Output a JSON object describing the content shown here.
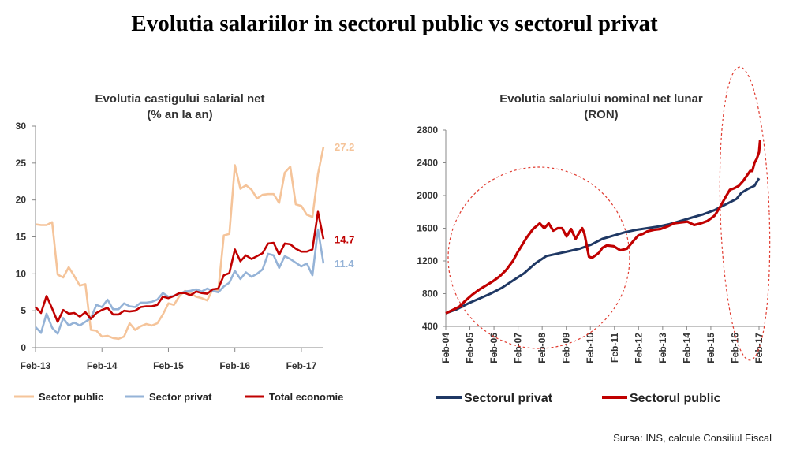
{
  "title": "Evolutia salariilor in sectorul public vs sectorul privat",
  "source": "Sursa: INS, calcule Consiliul Fiscal",
  "colors": {
    "public_left": "#F5C49A",
    "privat_left": "#95B3D7",
    "total": "#C00000",
    "privat_right": "#1F3864",
    "public_right": "#C00000",
    "highlight": "#E03C31"
  },
  "chart_data": [
    {
      "type": "line",
      "title": "Evolutia castigului salarial net",
      "subtitle": "(% an la an)",
      "ylim": [
        0,
        30
      ],
      "yticks": [
        "0",
        "5",
        "10",
        "15",
        "20",
        "25",
        "30"
      ],
      "xticks": [
        "Feb-13",
        "Feb-14",
        "Feb-15",
        "Feb-16",
        "Feb-17"
      ],
      "legend_position": "bottom",
      "series": [
        {
          "name": "Sector public",
          "color": "#F5C49A",
          "end_label": "27.2",
          "values": [
            16.7,
            16.6,
            16.6,
            17.0,
            9.9,
            9.5,
            10.9,
            9.7,
            8.4,
            8.6,
            2.4,
            2.3,
            1.5,
            1.6,
            1.3,
            1.2,
            1.5,
            3.3,
            2.4,
            2.9,
            3.2,
            3.0,
            3.3,
            4.5,
            6.0,
            5.8,
            7.0,
            7.7,
            7.4,
            6.9,
            6.7,
            6.4,
            7.9,
            7.7,
            15.2,
            15.4,
            24.7,
            21.5,
            22.0,
            21.4,
            20.2,
            20.7,
            20.8,
            20.8,
            19.6,
            23.7,
            24.5,
            19.4,
            19.2,
            18.0,
            17.7,
            23.5,
            27.2
          ]
        },
        {
          "name": "Sector privat",
          "color": "#95B3D7",
          "end_label": "11.4",
          "values": [
            2.8,
            2.0,
            4.6,
            2.7,
            1.9,
            4.0,
            3.0,
            3.4,
            3.0,
            3.5,
            4.0,
            5.8,
            5.5,
            6.5,
            5.2,
            5.2,
            6.0,
            5.6,
            5.5,
            6.1,
            6.1,
            6.2,
            6.5,
            7.4,
            6.9,
            7.0,
            7.3,
            7.6,
            7.7,
            7.9,
            7.6,
            8.0,
            7.7,
            7.5,
            8.3,
            8.8,
            10.4,
            9.3,
            10.2,
            9.6,
            10.0,
            10.6,
            12.7,
            12.5,
            10.8,
            12.4,
            12.0,
            11.5,
            11.0,
            11.4,
            9.8,
            16.0,
            11.4
          ]
        },
        {
          "name": "Total economie",
          "color": "#C00000",
          "end_label": "14.7",
          "values": [
            5.5,
            4.7,
            7.0,
            5.3,
            3.5,
            5.1,
            4.6,
            4.7,
            4.2,
            4.8,
            3.9,
            4.7,
            5.1,
            5.4,
            4.5,
            4.5,
            5.0,
            4.9,
            5.0,
            5.5,
            5.6,
            5.6,
            5.8,
            6.9,
            6.7,
            7.0,
            7.4,
            7.4,
            7.1,
            7.6,
            7.4,
            7.3,
            7.9,
            8.0,
            9.8,
            10.1,
            13.3,
            11.7,
            12.5,
            12.0,
            12.4,
            12.8,
            14.1,
            14.2,
            12.6,
            14.1,
            14.0,
            13.4,
            13.0,
            13.0,
            13.3,
            18.4,
            14.7
          ]
        }
      ]
    },
    {
      "type": "line",
      "title": "Evolutia salariului nominal net lunar",
      "subtitle": "(RON)",
      "ylim": [
        400,
        2800
      ],
      "yticks": [
        "400",
        "800",
        "1200",
        "1600",
        "2000",
        "2400",
        "2800"
      ],
      "xticks": [
        "Feb-04",
        "Feb-05",
        "Feb-06",
        "Feb-07",
        "Feb-08",
        "Feb-09",
        "Feb-10",
        "Feb-11",
        "Feb-12",
        "Feb-13",
        "Feb-14",
        "Feb-15",
        "Feb-16",
        "Feb-17"
      ],
      "legend_position": "bottom",
      "series": [
        {
          "name": "Sectorul privat",
          "color": "#1F3864",
          "x": [
            0,
            0.5,
            1,
            1.5,
            2,
            2.5,
            3,
            3.5,
            4,
            4.5,
            5,
            5.5,
            6,
            6.5,
            7,
            7.5,
            8,
            8.5,
            9,
            9.5,
            10,
            10.5,
            11,
            11.5,
            12,
            12.5,
            13,
            13.2,
            13.5,
            13.8,
            14
          ],
          "values": [
            560,
            610,
            680,
            740,
            800,
            870,
            960,
            1050,
            1170,
            1260,
            1290,
            1320,
            1350,
            1400,
            1470,
            1510,
            1550,
            1580,
            1600,
            1620,
            1650,
            1690,
            1730,
            1770,
            1820,
            1890,
            1960,
            2030,
            2080,
            2120,
            2210
          ]
        },
        {
          "name": "Sectorul public",
          "color": "#C00000",
          "x": [
            0,
            0.3,
            0.6,
            0.9,
            1.2,
            1.5,
            1.8,
            2.1,
            2.4,
            2.7,
            3.0,
            3.2,
            3.4,
            3.6,
            3.9,
            4.2,
            4.4,
            4.6,
            4.8,
            5.0,
            5.2,
            5.4,
            5.6,
            5.8,
            6.0,
            6.1,
            6.2,
            6.4,
            6.55,
            6.7,
            6.85,
            7.0,
            7.2,
            7.5,
            7.8,
            8.1,
            8.4,
            8.6,
            8.8,
            9.0,
            9.3,
            9.6,
            9.9,
            10.2,
            10.5,
            10.8,
            11.1,
            11.4,
            11.7,
            12.0,
            12.1,
            12.3,
            12.5,
            12.7,
            12.9,
            13.1,
            13.3,
            13.5,
            13.6,
            13.7,
            13.8,
            13.9,
            14.0,
            14.05
          ],
          "values": [
            560,
            600,
            640,
            720,
            790,
            850,
            900,
            950,
            1010,
            1090,
            1200,
            1300,
            1390,
            1480,
            1590,
            1660,
            1600,
            1660,
            1570,
            1600,
            1600,
            1500,
            1590,
            1470,
            1560,
            1600,
            1530,
            1250,
            1240,
            1270,
            1300,
            1360,
            1390,
            1380,
            1330,
            1350,
            1450,
            1510,
            1530,
            1560,
            1580,
            1590,
            1620,
            1660,
            1670,
            1680,
            1640,
            1660,
            1690,
            1750,
            1790,
            1880,
            1980,
            2070,
            2090,
            2120,
            2180,
            2260,
            2300,
            2300,
            2400,
            2450,
            2530,
            2680
          ]
        }
      ]
    }
  ]
}
